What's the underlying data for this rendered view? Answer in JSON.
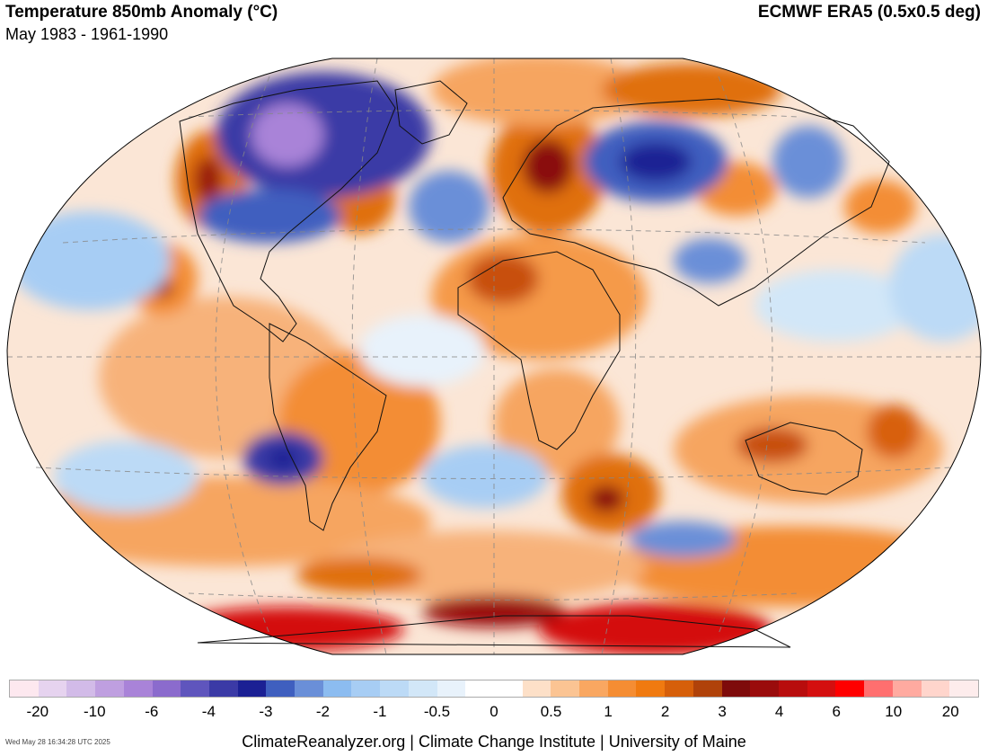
{
  "header": {
    "title": "Temperature 850mb Anomaly (°C)",
    "subtitle": "May 1983 - 1961-1990",
    "source": "ECMWF ERA5 (0.5x0.5 deg)"
  },
  "colorbar": {
    "colors": [
      "#fde8ef",
      "#e6d3ef",
      "#d2bbe8",
      "#bf9fe0",
      "#a983d8",
      "#8b6bcd",
      "#5f55bd",
      "#3b3aa6",
      "#1b2094",
      "#3f5fbf",
      "#6a8fd8",
      "#8cbcf0",
      "#a7cdf4",
      "#bcdaf6",
      "#d2e7f8",
      "#e8f2fb",
      "#ffffff",
      "#ffffff",
      "#fde0c8",
      "#fbc493",
      "#f9a761",
      "#f58d33",
      "#f07a10",
      "#d65f0a",
      "#b0420a",
      "#7e0b0b",
      "#9a0c0c",
      "#b80d0d",
      "#d40f0f",
      "#ff0000",
      "#ff6f6f",
      "#ffaaa0",
      "#ffd5cc",
      "#fdecec"
    ],
    "labels": [
      "-20",
      "-10",
      "-6",
      "-4",
      "-3",
      "-2",
      "-1",
      "-0.5",
      "0",
      "0.5",
      "1",
      "2",
      "3",
      "4",
      "6",
      "10",
      "20"
    ]
  },
  "map": {
    "projection": "Winkel Tripel",
    "regions": [
      {
        "name": "arctic-canada-cold",
        "anomaly": -6
      },
      {
        "name": "central-north-america-cold",
        "anomaly": -3
      },
      {
        "name": "western-canada-warm",
        "anomaly": 2.5
      },
      {
        "name": "north-atlantic-cold",
        "anomaly": -2
      },
      {
        "name": "scandinavia-warm",
        "anomaly": 3
      },
      {
        "name": "siberia-cold",
        "anomaly": -3
      },
      {
        "name": "sahara-warm",
        "anomaly": 2
      },
      {
        "name": "southern-africa-warm",
        "anomaly": 2
      },
      {
        "name": "southeast-pacific-cold",
        "anomaly": -3
      },
      {
        "name": "south-atlantic-warm",
        "anomaly": 3
      },
      {
        "name": "australia-warm",
        "anomaly": 2
      },
      {
        "name": "antarctica-warm",
        "anomaly": 6
      }
    ]
  },
  "footer": {
    "timestamp": "Wed May 28 16:34:28 UTC 2025",
    "credits": "ClimateReanalyzer.org | Climate Change Institute | University of Maine"
  }
}
